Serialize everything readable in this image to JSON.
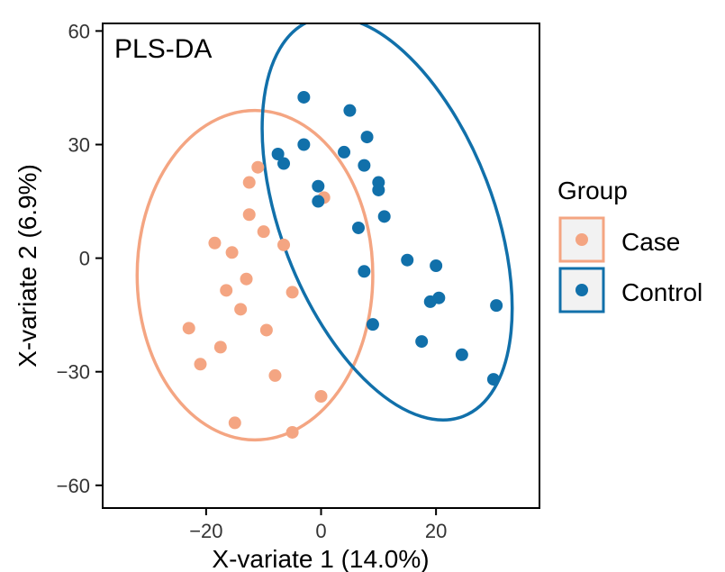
{
  "chart_data": {
    "type": "scatter",
    "title": "PLS-DA",
    "xlabel": "X-variate 1 (14.0%)",
    "ylabel": "X-variate 2 (6.9%)",
    "xlim": [
      -38,
      38
    ],
    "ylim": [
      -66,
      62
    ],
    "xticks": [
      {
        "value": -20,
        "label": "−20"
      },
      {
        "value": 0,
        "label": "0"
      },
      {
        "value": 20,
        "label": "20"
      }
    ],
    "yticks": [
      {
        "value": -60,
        "label": "−60"
      },
      {
        "value": -30,
        "label": "−30"
      },
      {
        "value": 0,
        "label": "0"
      },
      {
        "value": 30,
        "label": "30"
      },
      {
        "value": 60,
        "label": "60"
      }
    ],
    "legend": {
      "title": "Group",
      "position": "right",
      "entries": [
        {
          "label": "Case",
          "color": "#f4a582"
        },
        {
          "label": "Control",
          "color": "#1170aa"
        }
      ]
    },
    "series": [
      {
        "name": "Case",
        "color": "#f4a582",
        "ellipse": {
          "cx": -11.5,
          "cy": -4.5,
          "rx": 20.5,
          "ry": 43.5
        },
        "points": [
          {
            "x": -11,
            "y": 24
          },
          {
            "x": -12.5,
            "y": 20
          },
          {
            "x": 0.5,
            "y": 16
          },
          {
            "x": -12.5,
            "y": 11.5
          },
          {
            "x": -10,
            "y": 7
          },
          {
            "x": -18.5,
            "y": 4
          },
          {
            "x": -15.5,
            "y": 1.5
          },
          {
            "x": -6.5,
            "y": 3.5
          },
          {
            "x": -13,
            "y": -5.5
          },
          {
            "x": -16.5,
            "y": -8.5
          },
          {
            "x": -5,
            "y": -9
          },
          {
            "x": -14,
            "y": -13.5
          },
          {
            "x": -23,
            "y": -18.5
          },
          {
            "x": -9.5,
            "y": -19
          },
          {
            "x": -17.5,
            "y": -23.5
          },
          {
            "x": -21,
            "y": -28
          },
          {
            "x": -8,
            "y": -31
          },
          {
            "x": 0,
            "y": -36.5
          },
          {
            "x": -15,
            "y": -43.5
          },
          {
            "x": -5,
            "y": -46
          }
        ]
      },
      {
        "name": "Control",
        "color": "#1170aa",
        "ellipse": {
          "cx": 11.5,
          "cy": 10.5,
          "rx": 18.5,
          "ry": 56,
          "angle": -21
        },
        "points": [
          {
            "x": -3,
            "y": 42.5
          },
          {
            "x": 5,
            "y": 39
          },
          {
            "x": 8,
            "y": 32
          },
          {
            "x": -3,
            "y": 30
          },
          {
            "x": 4,
            "y": 28
          },
          {
            "x": -7.5,
            "y": 27.5
          },
          {
            "x": -6.5,
            "y": 25
          },
          {
            "x": 7.5,
            "y": 24.5
          },
          {
            "x": 10,
            "y": 20
          },
          {
            "x": 10,
            "y": 18
          },
          {
            "x": -0.5,
            "y": 19
          },
          {
            "x": -0.5,
            "y": 15
          },
          {
            "x": 11,
            "y": 11
          },
          {
            "x": 6.5,
            "y": 8
          },
          {
            "x": 15,
            "y": -0.5
          },
          {
            "x": 20,
            "y": -2
          },
          {
            "x": 7.5,
            "y": -3.5
          },
          {
            "x": 20.5,
            "y": -10.5
          },
          {
            "x": 19,
            "y": -11.5
          },
          {
            "x": 30.5,
            "y": -12.5
          },
          {
            "x": 9,
            "y": -17.5
          },
          {
            "x": 17.5,
            "y": -22
          },
          {
            "x": 24.5,
            "y": -25.5
          },
          {
            "x": 30,
            "y": -32
          }
        ]
      }
    ]
  }
}
